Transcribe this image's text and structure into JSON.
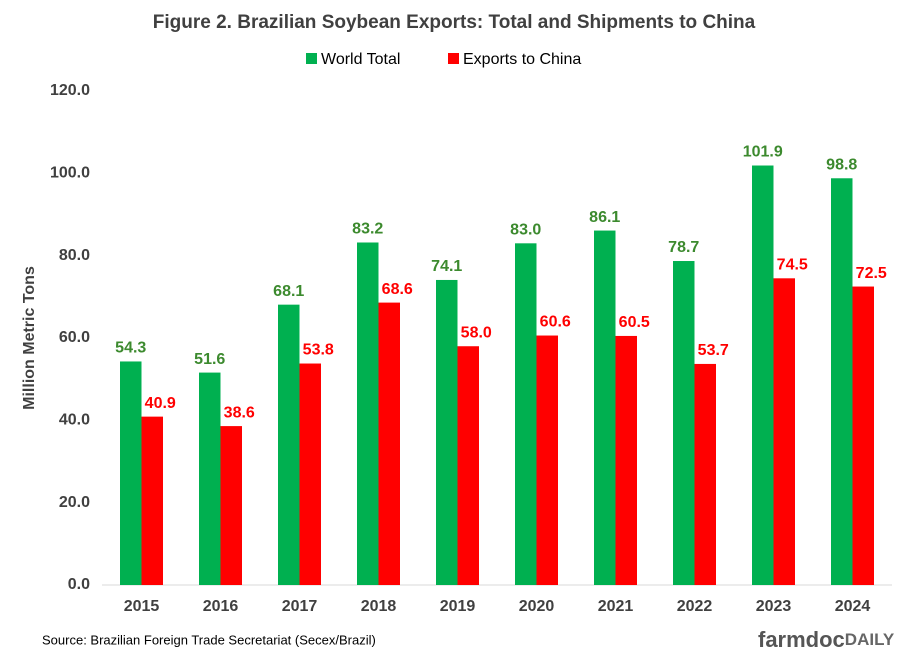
{
  "chart_data": {
    "type": "bar",
    "title": "Figure  2. Brazilian  Soybean  Exports:  Total and Shipments  to China",
    "y_label": "Million Metric Tons",
    "categories": [
      "2015",
      "2016",
      "2017",
      "2018",
      "2019",
      "2020",
      "2021",
      "2022",
      "2023",
      "2024"
    ],
    "series": [
      {
        "name": "World Total",
        "color": "#00b050",
        "label_color": "#3c8a2e",
        "values": [
          54.3,
          51.6,
          68.1,
          83.2,
          74.1,
          83.0,
          86.1,
          78.7,
          101.9,
          98.8
        ],
        "value_labels": [
          "54.3",
          "51.6",
          "68.1",
          "83.2",
          "74.1",
          "83.0",
          "86.1",
          "78.7",
          "101.9",
          "98.8"
        ]
      },
      {
        "name": "Exports to China",
        "color": "#ff0000",
        "label_color": "#ff0000",
        "values": [
          40.9,
          38.6,
          53.8,
          68.6,
          58.0,
          60.6,
          60.5,
          53.7,
          74.5,
          72.5
        ],
        "value_labels": [
          "40.9",
          "38.6",
          "53.8",
          "68.6",
          "58.0",
          "60.6",
          "60.5",
          "53.7",
          "74.5",
          "72.5"
        ]
      }
    ],
    "ylim": [
      0,
      120
    ],
    "yticks": [
      {
        "value": 0,
        "label": "0.0"
      },
      {
        "value": 20,
        "label": "20.0"
      },
      {
        "value": 40,
        "label": "40.0"
      },
      {
        "value": 60,
        "label": "60.0"
      },
      {
        "value": 80,
        "label": "80.0"
      },
      {
        "value": 100,
        "label": "100.0"
      },
      {
        "value": 120,
        "label": "120.0"
      }
    ],
    "grid": false,
    "legend": "top",
    "source": "Source: Brazilian Foreign Trade Secretariat (Secex/Brazil)",
    "logo": [
      "farmdoc",
      "DAILY"
    ]
  }
}
